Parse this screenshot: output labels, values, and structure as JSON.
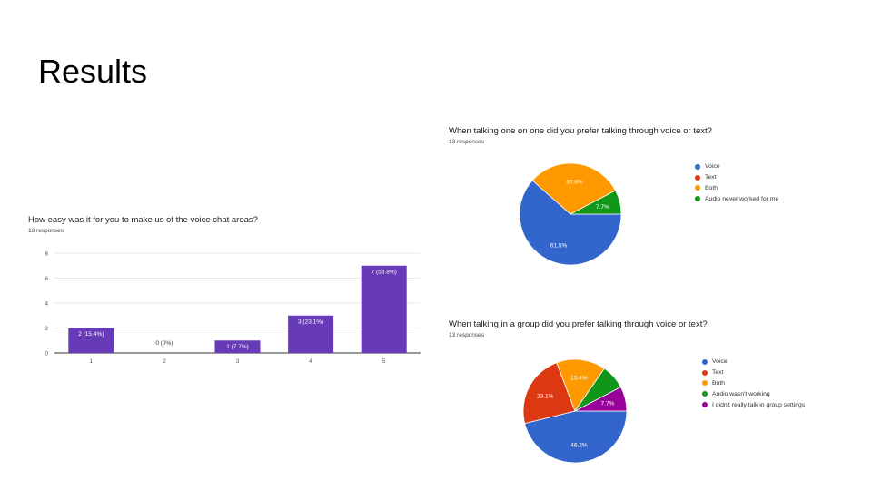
{
  "slide": {
    "title": "Results"
  },
  "chart_data": [
    {
      "type": "bar",
      "title": "How easy was it for you to make us of the voice chat areas?",
      "subtitle": "13 responses",
      "categories": [
        "1",
        "2",
        "3",
        "4",
        "5"
      ],
      "values": [
        2,
        0,
        1,
        3,
        7
      ],
      "data_labels": [
        "2 (15.4%)",
        "0 (0%)",
        "1 (7.7%)",
        "3 (23.1%)",
        "7 (53.8%)"
      ],
      "yticks": [
        "0",
        "2",
        "4",
        "6",
        "8"
      ],
      "ylim": [
        0,
        8
      ],
      "grid": true,
      "colors": {
        "bar": "#673ab7",
        "grid": "#e0e0e0",
        "axis": "#333333"
      }
    },
    {
      "type": "pie",
      "title": "When talking one on one did you prefer talking through voice or text?",
      "subtitle": "13 responses",
      "labels": [
        "Voice",
        "Text",
        "Both",
        "Audio never worked for me"
      ],
      "values": [
        8,
        0,
        4,
        1
      ],
      "percent_labels": [
        "61.5%",
        "",
        "30.8%",
        "7.7%"
      ],
      "colors": [
        "#3366cc",
        "#dc3912",
        "#ff9900",
        "#109618"
      ],
      "legend_position": "right"
    },
    {
      "type": "pie",
      "title": "When talking in a group did you prefer talking through voice or text?",
      "subtitle": "13 responses",
      "labels": [
        "Voice",
        "Text",
        "Both",
        "Audio wasn't working",
        "I didn't really talk in group settings"
      ],
      "values": [
        6,
        3,
        2,
        1,
        1
      ],
      "percent_labels": [
        "46.2%",
        "23.1%",
        "15.4%",
        "",
        "7.7%"
      ],
      "colors": [
        "#3366cc",
        "#dc3912",
        "#ff9900",
        "#109618",
        "#990099"
      ],
      "legend_position": "right"
    }
  ]
}
